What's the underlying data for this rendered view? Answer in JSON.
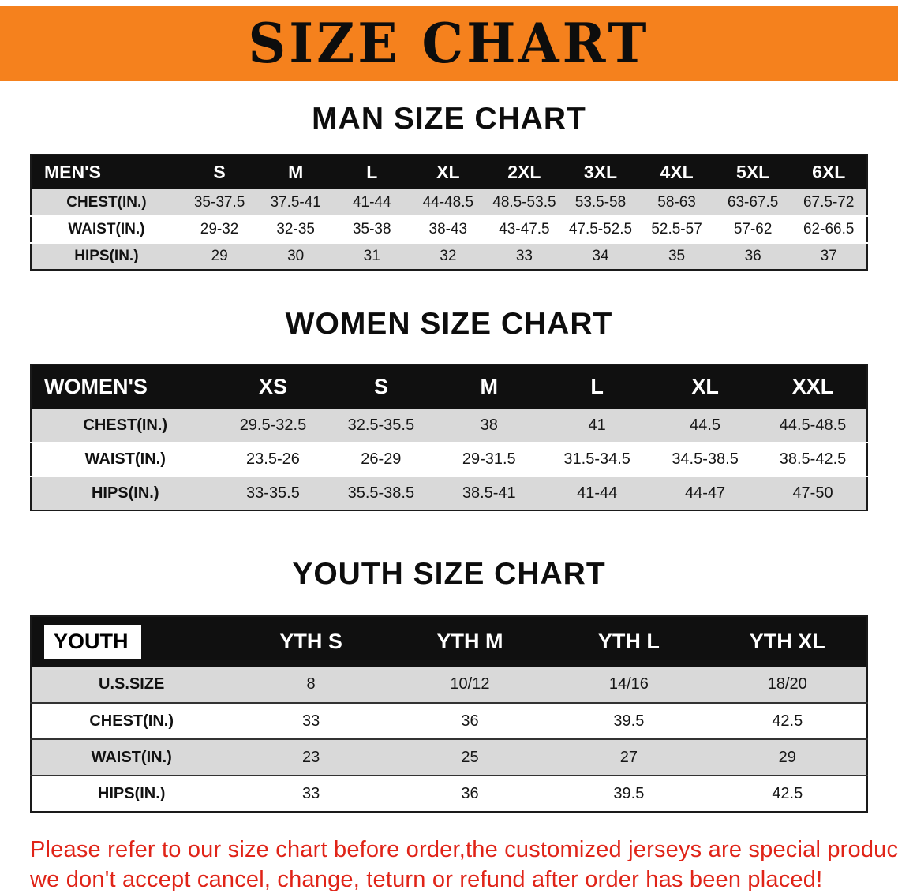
{
  "banner": {
    "title": "SIZE CHART"
  },
  "sections": [
    {
      "kind": "men",
      "heading": "MAN SIZE CHART",
      "header": [
        "MEN'S",
        "S",
        "M",
        "L",
        "XL",
        "2XL",
        "3XL",
        "4XL",
        "5XL",
        "6XL"
      ],
      "rows": [
        [
          "CHEST(IN.)",
          "35-37.5",
          "37.5-41",
          "41-44",
          "44-48.5",
          "48.5-53.5",
          "53.5-58",
          "58-63",
          "63-67.5",
          "67.5-72"
        ],
        [
          "WAIST(IN.)",
          "29-32",
          "32-35",
          "35-38",
          "38-43",
          "43-47.5",
          "47.5-52.5",
          "52.5-57",
          "57-62",
          "62-66.5"
        ],
        [
          "HIPS(IN.)",
          "29",
          "30",
          "31",
          "32",
          "33",
          "34",
          "35",
          "36",
          "37"
        ]
      ]
    },
    {
      "kind": "women",
      "heading": "WOMEN SIZE CHART",
      "header": [
        "WOMEN'S",
        "XS",
        "S",
        "M",
        "L",
        "XL",
        "XXL"
      ],
      "rows": [
        [
          "CHEST(IN.)",
          "29.5-32.5",
          "32.5-35.5",
          "38",
          "41",
          "44.5",
          "44.5-48.5"
        ],
        [
          "WAIST(IN.)",
          "23.5-26",
          "26-29",
          "29-31.5",
          "31.5-34.5",
          "34.5-38.5",
          "38.5-42.5"
        ],
        [
          "HIPS(IN.)",
          "33-35.5",
          "35.5-38.5",
          "38.5-41",
          "41-44",
          "44-47",
          "47-50"
        ]
      ]
    },
    {
      "kind": "youth",
      "heading": "YOUTH SIZE CHART",
      "header": [
        "YOUTH",
        "YTH S",
        "YTH M",
        "YTH L",
        "YTH XL"
      ],
      "rows": [
        [
          "U.S.SIZE",
          "8",
          "10/12",
          "14/16",
          "18/20"
        ],
        [
          "CHEST(IN.)",
          "33",
          "36",
          "39.5",
          "42.5"
        ],
        [
          "WAIST(IN.)",
          "23",
          "25",
          "27",
          "29"
        ],
        [
          "HIPS(IN.)",
          "33",
          "36",
          "39.5",
          "42.5"
        ]
      ]
    }
  ],
  "disclaimer": {
    "line1": "Please refer to our size chart before order,the customized jerseys are special products,",
    "line2": "we don't accept cancel, change, teturn or refund after order has been placed!"
  },
  "colors": {
    "banner_orange": "#F5811D",
    "header_black": "#101010",
    "row_gray": "#D9D9D9",
    "disclaimer_red": "#E02418"
  }
}
